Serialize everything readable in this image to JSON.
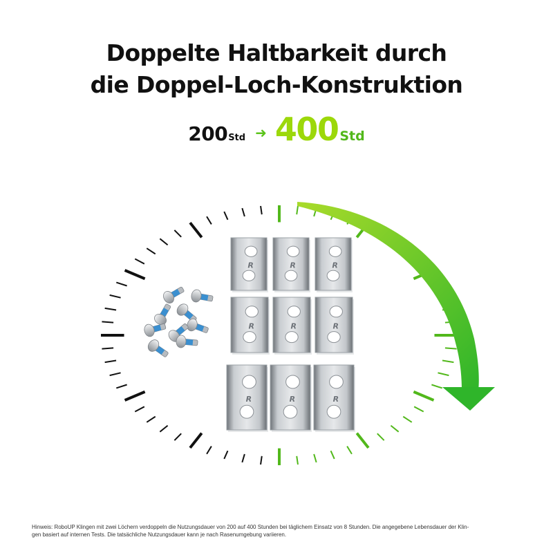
{
  "headline": {
    "line1": "Doppelte Haltbarkeit durch",
    "line2": "die Doppel-Loch-Konstruktion"
  },
  "durability": {
    "from_value": "200",
    "from_unit": "Std",
    "to_value": "400",
    "to_unit": "Std",
    "arrow_icon": "right-arrow-icon"
  },
  "product": {
    "blade_count": 9,
    "screw_count": 9,
    "blade_logo": "R"
  },
  "colors": {
    "accent_green": "#52b81b",
    "accent_lime": "#9cd80a",
    "tick_dark": "#111111",
    "background": "#ffffff"
  },
  "footnote": {
    "line1": "Hinweis: RoboUP Klingen mit zwei Löchern verdoppeln die Nutzungsdauer von 200 auf 400 Stunden bei täglichem Einsatz von 8 Stunden. Die angegebene Lebensdauer der Klin-",
    "line2": "gen basiert auf internen Tests. Die tatsächliche Nutzungsdauer kann je nach Rasenumgebung variieren."
  }
}
